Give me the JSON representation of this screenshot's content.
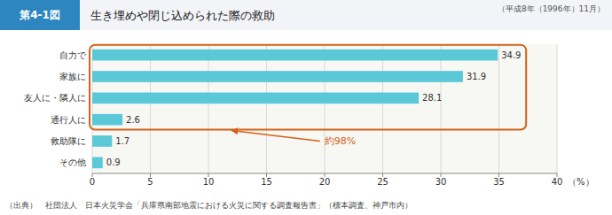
{
  "chart_data": {
    "type": "bar",
    "orientation": "horizontal",
    "figure_label": "第4-1図",
    "title": "生き埋めや閉じ込められた際の救助",
    "subtitle": "（平成8年（1996年）11月）",
    "categories": [
      "自力で",
      "家族に",
      "友人に・隣人に",
      "通行人に",
      "救助隊に",
      "その他"
    ],
    "values": [
      34.9,
      31.9,
      28.1,
      2.6,
      1.7,
      0.9
    ],
    "color": "#5bc8d8",
    "xlim": [
      0,
      40
    ],
    "xticks": [
      0,
      5,
      10,
      15,
      20,
      25,
      30,
      35,
      40
    ],
    "xlabel": "（%）",
    "annotation": "約98%",
    "source": "（出典）　社団法人　日本火災学会「兵庫県南部地震における火災に関する調査報告書」（標本調査、神戸市内）",
    "data_labels": true,
    "grid": true
  }
}
